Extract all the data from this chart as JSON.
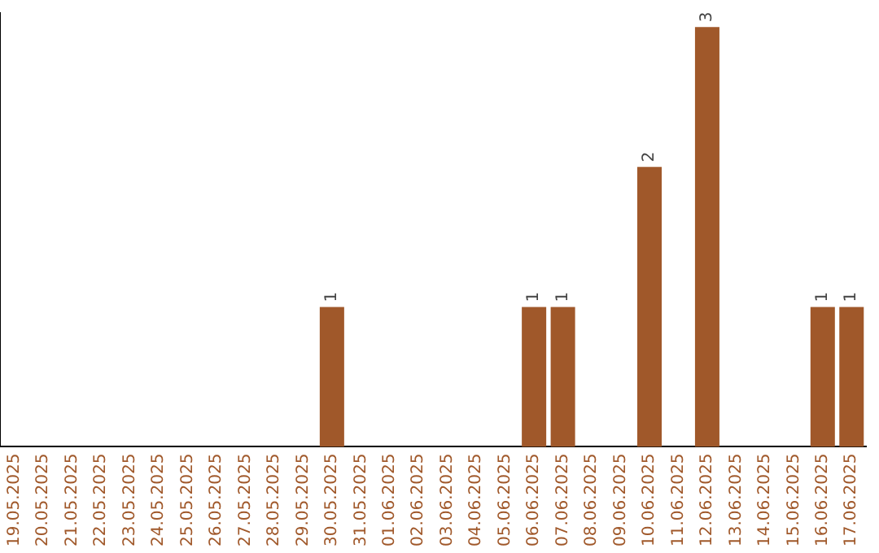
{
  "chart_data": {
    "type": "bar",
    "categories": [
      "19.05.2025",
      "20.05.2025",
      "21.05.2025",
      "22.05.2025",
      "23.05.2025",
      "24.05.2025",
      "25.05.2025",
      "26.05.2025",
      "27.05.2025",
      "28.05.2025",
      "29.05.2025",
      "30.05.2025",
      "31.05.2025",
      "01.06.2025",
      "02.06.2025",
      "03.06.2025",
      "04.06.2025",
      "05.06.2025",
      "06.06.2025",
      "07.06.2025",
      "08.06.2025",
      "09.06.2025",
      "10.06.2025",
      "11.06.2025",
      "12.06.2025",
      "13.06.2025",
      "14.06.2025",
      "15.06.2025",
      "16.06.2025",
      "17.06.2025"
    ],
    "values": [
      0,
      0,
      0,
      0,
      0,
      0,
      0,
      0,
      0,
      0,
      0,
      1,
      0,
      0,
      0,
      0,
      0,
      0,
      1,
      1,
      0,
      0,
      2,
      0,
      3,
      0,
      0,
      0,
      1,
      1
    ],
    "value_labels": [
      null,
      null,
      null,
      null,
      null,
      null,
      null,
      null,
      null,
      null,
      null,
      "1",
      null,
      null,
      null,
      null,
      null,
      null,
      "1",
      "1",
      null,
      null,
      "2",
      null,
      "3",
      null,
      null,
      null,
      "1",
      "1"
    ],
    "color": "#a0582a",
    "ylim": [
      0,
      3.1
    ],
    "tick_labels": "x",
    "grid": false,
    "legend": false
  }
}
